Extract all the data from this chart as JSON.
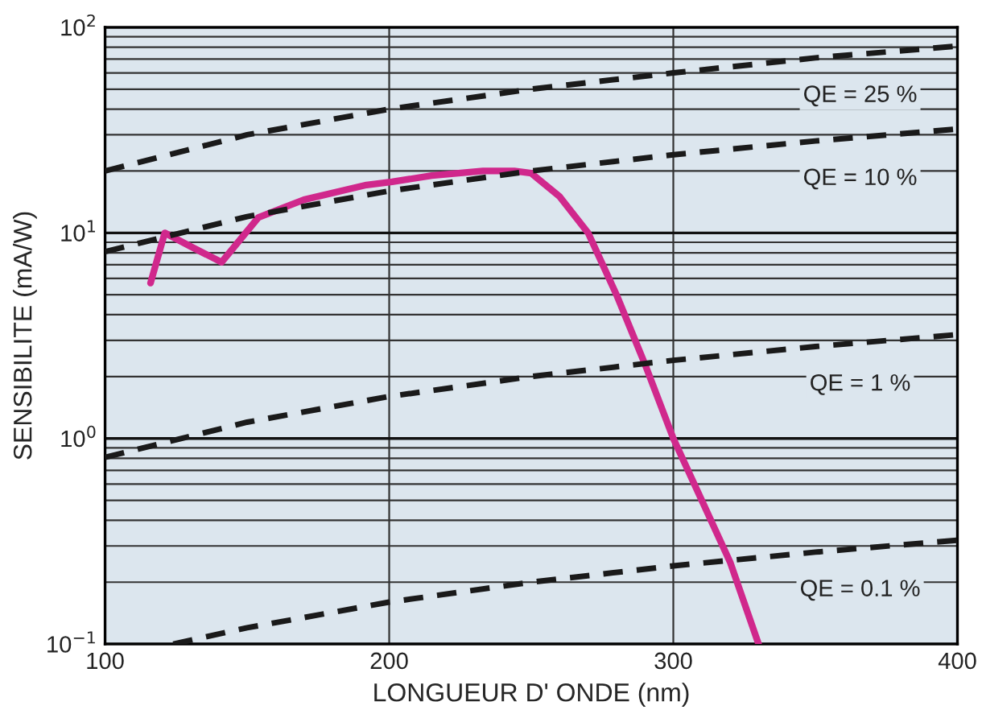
{
  "chart_data": {
    "type": "line",
    "xlabel": "LONGUEUR D' ONDE (nm)",
    "ylabel": "SENSIBILITE (mA/W)",
    "log": "y",
    "grid": true,
    "line_style": "solid",
    "marker": "none",
    "xlim": [
      100,
      400
    ],
    "xticks": [
      100,
      200,
      300,
      400
    ],
    "ylim": [
      0.1,
      100
    ],
    "yticks": [
      {
        "value": 0.1,
        "label": "10$^{−1}$"
      },
      {
        "value": 1,
        "label": "10$^{0}$"
      },
      {
        "value": 10,
        "label": "10$^{1}$"
      },
      {
        "value": 100,
        "label": "10$^{2}$"
      }
    ],
    "series": [
      {
        "color": "#d0288c",
        "x": [
          116,
          121,
          130,
          141,
          154,
          170,
          192,
          201,
          215,
          233,
          244,
          250,
          260,
          270,
          280,
          290,
          300,
          310,
          320,
          330
        ],
        "values": [
          5.7,
          10,
          8.6,
          7.2,
          11.9,
          14.5,
          17.1,
          17.7,
          19,
          20,
          20,
          19.5,
          15,
          10,
          5,
          2.3,
          1.0,
          0.5,
          0.25,
          0.1
        ]
      },
      {
        "color": "#1a1a1a",
        "line_style": "dashed",
        "x": [
          100,
          150,
          200,
          250,
          300,
          350,
          400
        ],
        "values": [
          20,
          30,
          40,
          50,
          60,
          71,
          81
        ],
        "name": "QE = 25 %"
      },
      {
        "color": "#1a1a1a",
        "line_style": "dashed",
        "x": [
          100,
          150,
          200,
          250,
          300,
          350,
          400
        ],
        "values": [
          8.1,
          12,
          16,
          20,
          24,
          28,
          32
        ],
        "name": "QE = 10 %"
      },
      {
        "color": "#1a1a1a",
        "line_style": "dashed",
        "x": [
          100,
          150,
          200,
          250,
          300,
          350,
          400
        ],
        "values": [
          0.81,
          1.2,
          1.6,
          2.0,
          2.4,
          2.8,
          3.2
        ],
        "name": "QE = 1 %"
      },
      {
        "color": "#1a1a1a",
        "line_style": "dashed",
        "x": [
          124,
          150,
          200,
          250,
          300,
          350,
          400
        ],
        "values": [
          0.1,
          0.12,
          0.16,
          0.2,
          0.24,
          0.28,
          0.32
        ],
        "name": "QE = 0.1 %"
      }
    ]
  }
}
